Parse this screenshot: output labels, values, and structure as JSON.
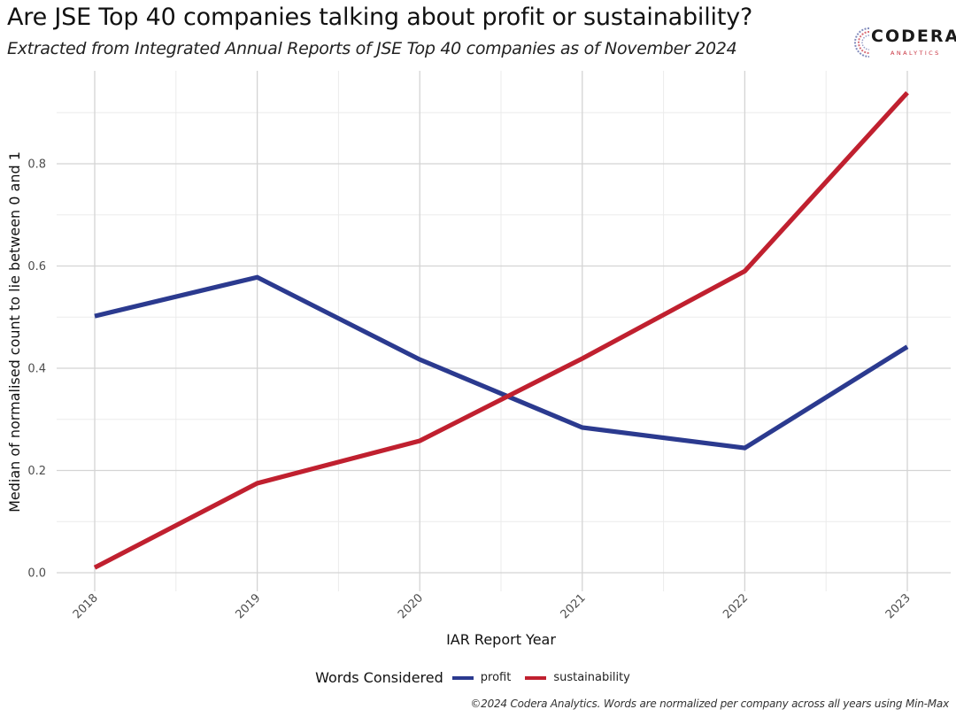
{
  "header": {
    "title": "Are JSE Top 40 companies talking about profit or sustainability?",
    "subtitle": "Extracted from Integrated Annual Reports of JSE Top 40 companies as of November 2024"
  },
  "logo": {
    "name": "CODERA",
    "tagline": "ANALYTICS",
    "colors": {
      "text": "#1a1a1a",
      "accent": "#c8323f",
      "mark_blue": "#2d3e8f"
    }
  },
  "caption": "©2024 Codera Analytics. Words are normalized per company across all years using Min-Max",
  "chart_data": {
    "type": "line",
    "title": "Are JSE Top 40 companies talking about profit or sustainability?",
    "subtitle": "Extracted from Integrated Annual Reports of JSE Top 40 companies as of November 2024",
    "xlabel": "IAR Report Year",
    "ylabel": "Median of normalised count to lie between 0 and 1",
    "x": [
      "2018",
      "2019",
      "2020",
      "2021",
      "2022",
      "2023"
    ],
    "yticks": [
      "0.0",
      "0.2",
      "0.4",
      "0.6",
      "0.8"
    ],
    "ytick_values": [
      0.0,
      0.2,
      0.4,
      0.6,
      0.8
    ],
    "ylim": [
      0.0,
      0.94
    ],
    "grid": true,
    "legend": {
      "title": "Words Considered",
      "placement": "bottom"
    },
    "series": [
      {
        "name": "profit",
        "color": "#2b3a8f",
        "values": [
          0.502,
          0.578,
          0.417,
          0.284,
          0.244,
          0.442
        ]
      },
      {
        "name": "sustainability",
        "color": "#c0202f",
        "values": [
          0.01,
          0.175,
          0.258,
          0.419,
          0.59,
          0.939
        ]
      }
    ]
  }
}
